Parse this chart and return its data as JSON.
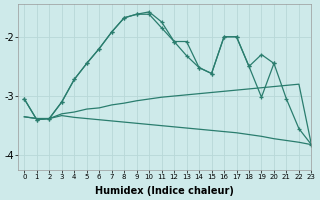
{
  "x": [
    0,
    1,
    2,
    3,
    4,
    5,
    6,
    7,
    8,
    9,
    10,
    11,
    12,
    13,
    14,
    15,
    16,
    17,
    18,
    19,
    20,
    21,
    22,
    23
  ],
  "y_line1": [
    -3.05,
    -3.4,
    -3.38,
    -3.1,
    -2.72,
    -2.45,
    -2.2,
    -1.92,
    -1.68,
    -1.62,
    -1.58,
    -1.75,
    -2.08,
    -2.08,
    -2.52,
    -2.62,
    -2.0,
    -2.0,
    -2.5,
    -3.02,
    -2.45,
    -3.05,
    -3.55,
    -3.82
  ],
  "y_line2": [
    -3.05,
    -3.4,
    -3.38,
    -3.1,
    -2.72,
    -2.45,
    -2.2,
    -1.92,
    -1.68,
    -1.62,
    -1.62,
    -1.85,
    -2.08,
    -2.32,
    -2.52,
    -2.62,
    -2.0,
    -2.0,
    -2.5,
    -2.3,
    -2.45,
    null,
    null,
    null
  ],
  "y_line3": [
    -3.35,
    -3.38,
    -3.38,
    -3.3,
    -3.27,
    -3.22,
    -3.2,
    -3.15,
    -3.12,
    -3.08,
    -3.05,
    -3.02,
    -3.0,
    -2.98,
    -2.96,
    -2.94,
    -2.92,
    -2.9,
    -2.88,
    -2.86,
    -2.84,
    -2.82,
    -2.8,
    -3.82
  ],
  "y_line4": [
    -3.35,
    -3.38,
    -3.38,
    -3.33,
    -3.36,
    -3.38,
    -3.4,
    -3.42,
    -3.44,
    -3.46,
    -3.48,
    -3.5,
    -3.52,
    -3.54,
    -3.56,
    -3.58,
    -3.6,
    -3.62,
    -3.65,
    -3.68,
    -3.72,
    -3.75,
    -3.78,
    -3.82
  ],
  "bg_color": "#ceeaea",
  "line_color": "#2a7d6e",
  "grid_color": "#b8d8d8",
  "xlabel": "Humidex (Indice chaleur)",
  "yticks": [
    -4,
    -3,
    -2
  ],
  "xlim": [
    -0.5,
    23
  ],
  "ylim": [
    -4.25,
    -1.45
  ]
}
